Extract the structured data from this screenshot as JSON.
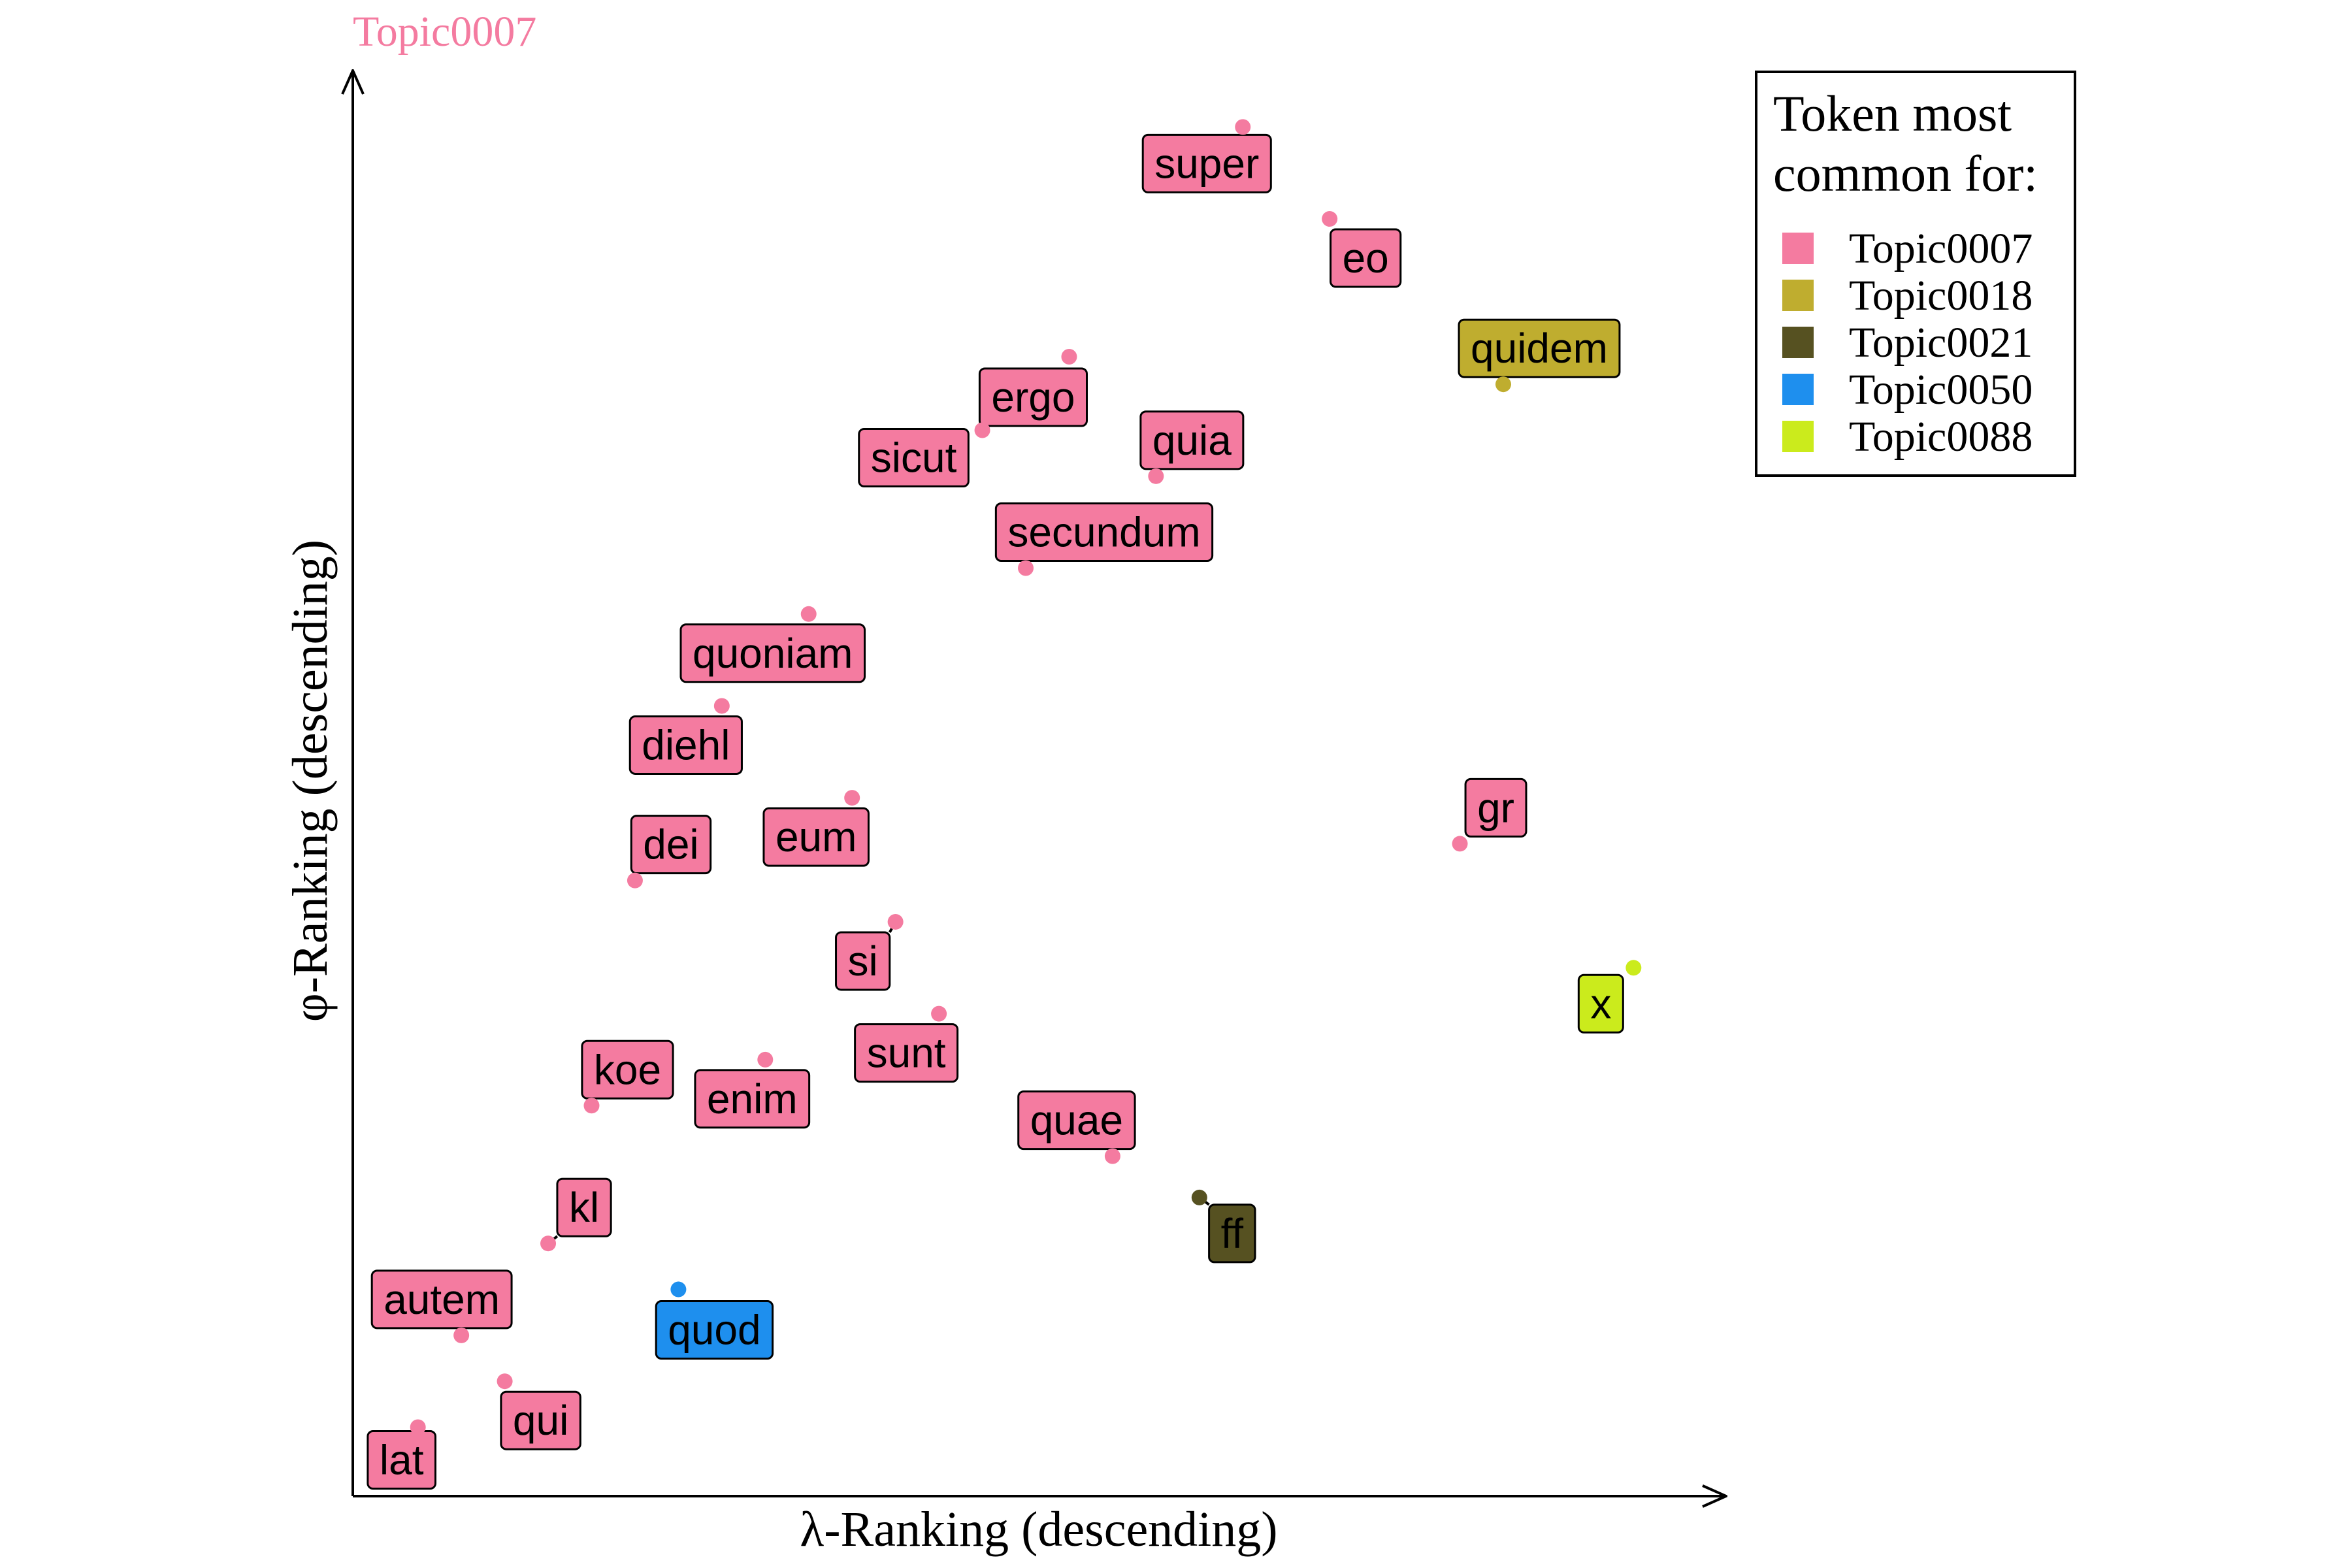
{
  "chart_data": {
    "type": "scatter",
    "title": "Topic0007",
    "title_color": "#F47BA0",
    "xlabel": "λ-Ranking (descending)",
    "ylabel": "φ-Ranking (descending)",
    "xlim": [
      0,
      31
    ],
    "ylim": [
      0,
      31
    ],
    "grid": false,
    "legend": {
      "title_lines": [
        "Token most",
        "common for:"
      ],
      "placement": "top-right",
      "entries": [
        {
          "name": "Topic0007",
          "color": "#F47BA0"
        },
        {
          "name": "Topic0018",
          "color": "#BFAD2F"
        },
        {
          "name": "Topic0021",
          "color": "#565121"
        },
        {
          "name": "Topic0050",
          "color": "#1E8FEE"
        },
        {
          "name": "Topic0088",
          "color": "#CBEB1C"
        }
      ]
    },
    "points": [
      {
        "label": "super",
        "x": 20.5,
        "y": 29.8,
        "topic": "Topic0007"
      },
      {
        "label": "eo",
        "x": 22.5,
        "y": 27.8,
        "topic": "Topic0007"
      },
      {
        "label": "quidem",
        "x": 26.5,
        "y": 24.2,
        "topic": "Topic0018"
      },
      {
        "label": "ergo",
        "x": 16.5,
        "y": 24.8,
        "topic": "Topic0007"
      },
      {
        "label": "sicut",
        "x": 14.5,
        "y": 23.2,
        "topic": "Topic0007"
      },
      {
        "label": "quia",
        "x": 18.5,
        "y": 22.2,
        "topic": "Topic0007"
      },
      {
        "label": "secundum",
        "x": 15.5,
        "y": 20.2,
        "topic": "Topic0007"
      },
      {
        "label": "quoniam",
        "x": 10.5,
        "y": 19.2,
        "topic": "Topic0007"
      },
      {
        "label": "diehl",
        "x": 8.5,
        "y": 17.2,
        "topic": "Topic0007"
      },
      {
        "label": "eum",
        "x": 11.5,
        "y": 15.2,
        "topic": "Topic0007"
      },
      {
        "label": "gr",
        "x": 25.5,
        "y": 14.2,
        "topic": "Topic0007"
      },
      {
        "label": "dei",
        "x": 6.5,
        "y": 13.4,
        "topic": "Topic0007"
      },
      {
        "label": "si",
        "x": 12.5,
        "y": 12.5,
        "topic": "Topic0007"
      },
      {
        "label": "x",
        "x": 29.5,
        "y": 11.5,
        "topic": "Topic0088"
      },
      {
        "label": "sunt",
        "x": 13.5,
        "y": 10.5,
        "topic": "Topic0007"
      },
      {
        "label": "enim",
        "x": 9.5,
        "y": 9.5,
        "topic": "Topic0007"
      },
      {
        "label": "koe",
        "x": 5.5,
        "y": 8.5,
        "topic": "Topic0007"
      },
      {
        "label": "quae",
        "x": 17.5,
        "y": 7.4,
        "topic": "Topic0007"
      },
      {
        "label": "ff",
        "x": 19.5,
        "y": 6.5,
        "topic": "Topic0021"
      },
      {
        "label": "kl",
        "x": 4.5,
        "y": 5.5,
        "topic": "Topic0007"
      },
      {
        "label": "quod",
        "x": 7.5,
        "y": 4.5,
        "topic": "Topic0050"
      },
      {
        "label": "autem",
        "x": 2.5,
        "y": 3.5,
        "topic": "Topic0007"
      },
      {
        "label": "qui",
        "x": 3.5,
        "y": 2.5,
        "topic": "Topic0007"
      },
      {
        "label": "lat",
        "x": 1.5,
        "y": 1.5,
        "topic": "Topic0007"
      }
    ]
  }
}
